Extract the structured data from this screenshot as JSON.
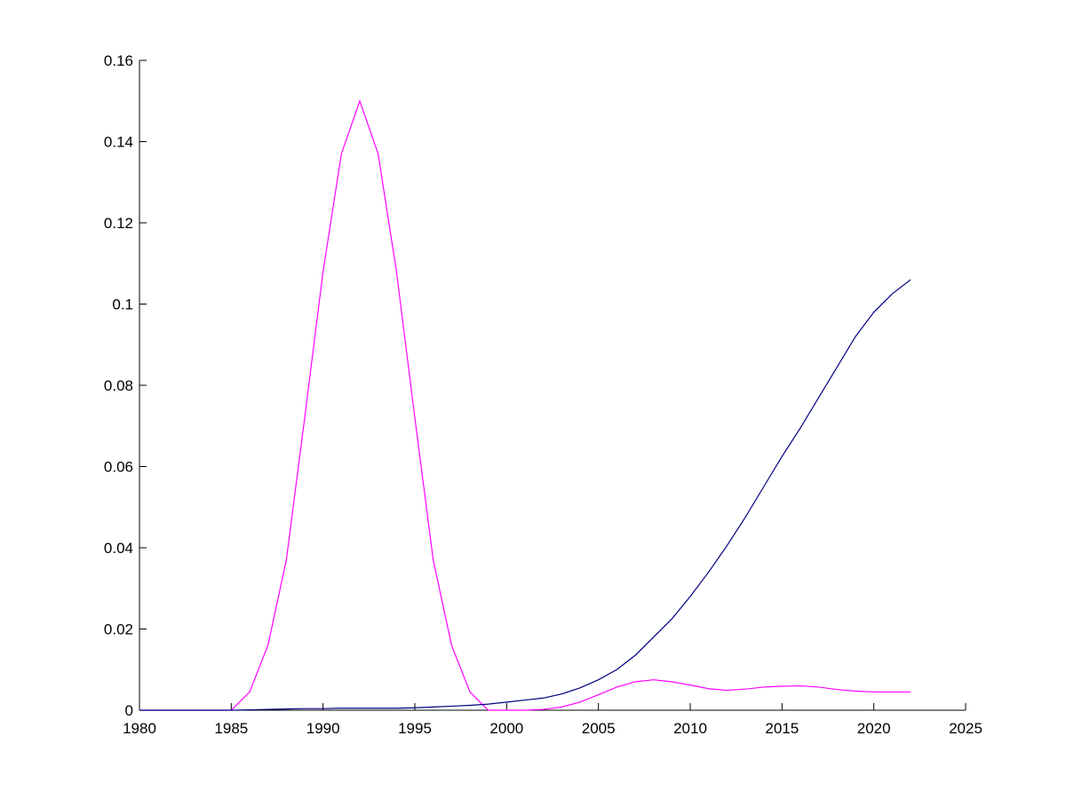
{
  "chart_data": {
    "type": "line",
    "x": [
      1980,
      1981,
      1982,
      1983,
      1984,
      1985,
      1986,
      1987,
      1988,
      1989,
      1990,
      1991,
      1992,
      1993,
      1994,
      1995,
      1996,
      1997,
      1998,
      1999,
      2000,
      2001,
      2002,
      2003,
      2004,
      2005,
      2006,
      2007,
      2008,
      2009,
      2010,
      2011,
      2012,
      2013,
      2014,
      2015,
      2016,
      2017,
      2018,
      2019,
      2020,
      2021,
      2022
    ],
    "series": [
      {
        "color": "#ff00ff",
        "values": [
          0,
          0,
          0,
          0,
          0,
          0,
          0.0045,
          0.016,
          0.037,
          0.072,
          0.108,
          0.137,
          0.15,
          0.137,
          0.108,
          0.072,
          0.037,
          0.016,
          0.0045,
          0,
          0,
          0,
          0.0002,
          0.0008,
          0.002,
          0.0038,
          0.0057,
          0.007,
          0.0075,
          0.007,
          0.0062,
          0.0053,
          0.0049,
          0.0052,
          0.0057,
          0.0059,
          0.006,
          0.0057,
          0.0051,
          0.0047,
          0.0045,
          0.0045,
          0.0045
        ]
      },
      {
        "color": "#000080",
        "values": [
          0,
          0,
          0,
          0,
          0,
          0,
          0.0001,
          0.0002,
          0.0003,
          0.0004,
          0.0004,
          0.0005,
          0.0005,
          0.0005,
          0.0005,
          0.0006,
          0.0008,
          0.001,
          0.0012,
          0.0015,
          0.002,
          0.0025,
          0.003,
          0.004,
          0.0055,
          0.0075,
          0.01,
          0.0135,
          0.018,
          0.0225,
          0.028,
          0.034,
          0.0405,
          0.0475,
          0.055,
          0.0625,
          0.0695,
          0.077,
          0.0845,
          0.092,
          0.098,
          0.1025,
          0.106
        ]
      }
    ],
    "xlim": [
      1980,
      2025
    ],
    "xticks": [
      1980,
      1985,
      1990,
      1995,
      2000,
      2005,
      2010,
      2015,
      2020,
      2025
    ],
    "ylim": [
      0,
      0.16
    ],
    "yticks": [
      0,
      0.02,
      0.04,
      0.06,
      0.08,
      0.1,
      0.12,
      0.14,
      0.16
    ]
  }
}
